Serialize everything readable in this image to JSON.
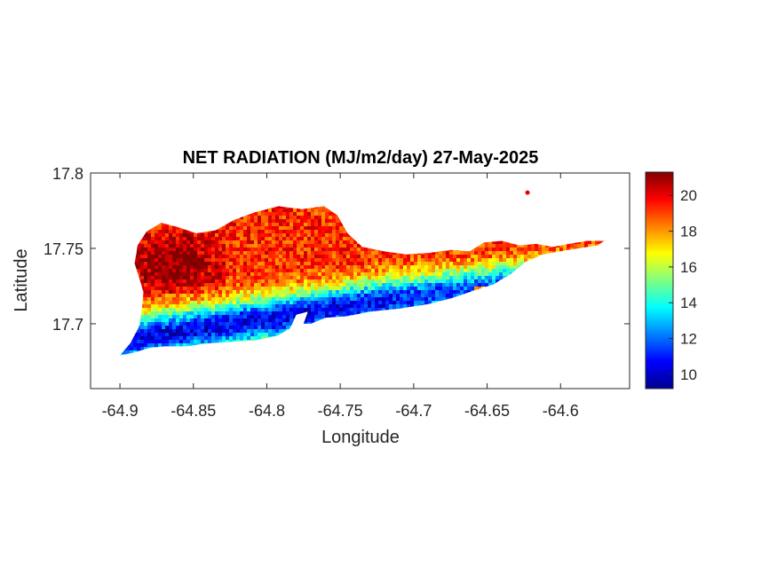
{
  "chart_data": {
    "type": "heatmap",
    "title": "NET RADIATION (MJ/m2/day) 27-May-2025",
    "xlabel": "Longitude",
    "ylabel": "Latitude",
    "xlim": [
      -64.92,
      -64.553
    ],
    "ylim": [
      17.657,
      17.8
    ],
    "xticks": [
      -64.9,
      -64.85,
      -64.8,
      -64.75,
      -64.7,
      -64.65,
      -64.6
    ],
    "xtick_labels": [
      "-64.9",
      "-64.85",
      "-64.8",
      "-64.75",
      "-64.7",
      "-64.65",
      "-64.6"
    ],
    "yticks": [
      17.7,
      17.75,
      17.8
    ],
    "ytick_labels": [
      "17.7",
      "17.75",
      "17.8"
    ],
    "colorbar": {
      "colormap": "jet",
      "clim": [
        9.2,
        21.3
      ],
      "ticks": [
        10,
        12,
        14,
        16,
        18,
        20
      ],
      "tick_labels": [
        "10",
        "12",
        "14",
        "16",
        "18",
        "20"
      ],
      "colors": [
        "#00008f",
        "#0000ff",
        "#0080ff",
        "#00ffff",
        "#80ff80",
        "#ffff00",
        "#ff8000",
        "#ff0000",
        "#800000"
      ]
    },
    "island_outline": [
      [
        -64.9,
        17.679
      ],
      [
        -64.893,
        17.687
      ],
      [
        -64.887,
        17.698
      ],
      [
        -64.885,
        17.71
      ],
      [
        -64.884,
        17.721
      ],
      [
        -64.887,
        17.731
      ],
      [
        -64.89,
        17.74
      ],
      [
        -64.888,
        17.752
      ],
      [
        -64.882,
        17.761
      ],
      [
        -64.872,
        17.767
      ],
      [
        -64.86,
        17.764
      ],
      [
        -64.848,
        17.76
      ],
      [
        -64.835,
        17.762
      ],
      [
        -64.822,
        17.769
      ],
      [
        -64.808,
        17.774
      ],
      [
        -64.792,
        17.778
      ],
      [
        -64.776,
        17.776
      ],
      [
        -64.761,
        17.778
      ],
      [
        -64.752,
        17.772
      ],
      [
        -64.745,
        17.76
      ],
      [
        -64.735,
        17.751
      ],
      [
        -64.72,
        17.748
      ],
      [
        -64.705,
        17.746
      ],
      [
        -64.69,
        17.747
      ],
      [
        -64.675,
        17.749
      ],
      [
        -64.662,
        17.748
      ],
      [
        -64.652,
        17.754
      ],
      [
        -64.64,
        17.755
      ],
      [
        -64.628,
        17.752
      ],
      [
        -64.617,
        17.753
      ],
      [
        -64.605,
        17.751
      ],
      [
        -64.594,
        17.753
      ],
      [
        -64.582,
        17.755
      ],
      [
        -64.57,
        17.755
      ],
      [
        -64.575,
        17.752
      ],
      [
        -64.595,
        17.749
      ],
      [
        -64.612,
        17.746
      ],
      [
        -64.624,
        17.741
      ],
      [
        -64.634,
        17.733
      ],
      [
        -64.646,
        17.726
      ],
      [
        -64.659,
        17.722
      ],
      [
        -64.674,
        17.717
      ],
      [
        -64.69,
        17.713
      ],
      [
        -64.71,
        17.71
      ],
      [
        -64.73,
        17.708
      ],
      [
        -64.745,
        17.705
      ],
      [
        -64.76,
        17.704
      ],
      [
        -64.77,
        17.7
      ],
      [
        -64.775,
        17.7
      ],
      [
        -64.772,
        17.708
      ],
      [
        -64.78,
        17.706
      ],
      [
        -64.784,
        17.697
      ],
      [
        -64.793,
        17.692
      ],
      [
        -64.808,
        17.689
      ],
      [
        -64.824,
        17.688
      ],
      [
        -64.84,
        17.687
      ],
      [
        -64.855,
        17.685
      ],
      [
        -64.87,
        17.685
      ],
      [
        -64.88,
        17.684
      ],
      [
        -64.89,
        17.681
      ]
    ],
    "islet": [
      -64.6225,
      17.787
    ]
  }
}
